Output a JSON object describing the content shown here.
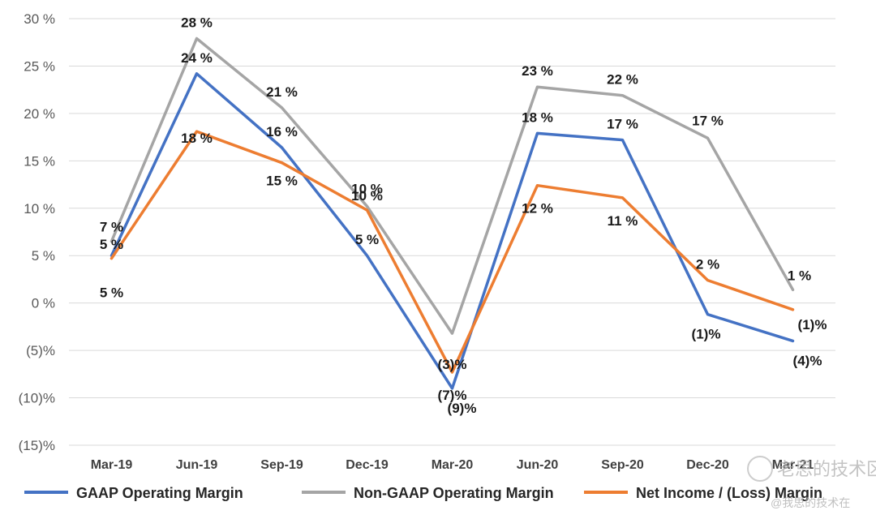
{
  "chart_data": {
    "type": "line",
    "title": "",
    "xlabel": "",
    "ylabel": "",
    "categories": [
      "Mar-19",
      "Jun-19",
      "Sep-19",
      "Dec-19",
      "Mar-20",
      "Jun-20",
      "Sep-20",
      "Dec-20",
      "Mar-21"
    ],
    "ylim": [
      -15,
      30
    ],
    "yticks": [
      30,
      25,
      20,
      15,
      10,
      5,
      0,
      -5,
      -10,
      -15
    ],
    "ytick_labels": [
      "30 %",
      "25 %",
      "20 %",
      "15 %",
      "10 %",
      "5 %",
      "0 %",
      "(5)%",
      "(10)%",
      "(15)%"
    ],
    "grid": true,
    "legend_position": "bottom",
    "series": [
      {
        "name": "GAAP Operating Margin",
        "color": "#4472C4",
        "values": [
          5,
          24.2,
          16.4,
          5,
          -9,
          17.9,
          17.2,
          -1.2,
          -4
        ],
        "labels": [
          "5 %",
          "24 %",
          "16 %",
          "5 %",
          "(9)%",
          "18 %",
          "17 %",
          "(1)%",
          "(4)%"
        ]
      },
      {
        "name": "Non-GAAP Operating Margin",
        "color": "#A5A5A5",
        "values": [
          6.5,
          27.9,
          20.6,
          10.2,
          -3.2,
          22.8,
          21.9,
          17.4,
          1.4
        ],
        "labels": [
          "7 %",
          "28 %",
          "21 %",
          "10 %",
          "(3)%",
          "23 %",
          "22 %",
          "17 %",
          "1 %"
        ]
      },
      {
        "name": "Net Income / (Loss) Margin",
        "color": "#ED7D31",
        "values": [
          4.7,
          18.1,
          14.8,
          9.8,
          -7.3,
          12.4,
          11.1,
          2.4,
          -0.7
        ],
        "labels": [
          "5 %",
          "18 %",
          "15 %",
          "10 %",
          "(7)%",
          "12 %",
          "11 %",
          "2 %",
          "(1)%"
        ]
      }
    ]
  },
  "watermark": {
    "main": "老思的技术区",
    "sub": "@我思的技术在"
  }
}
